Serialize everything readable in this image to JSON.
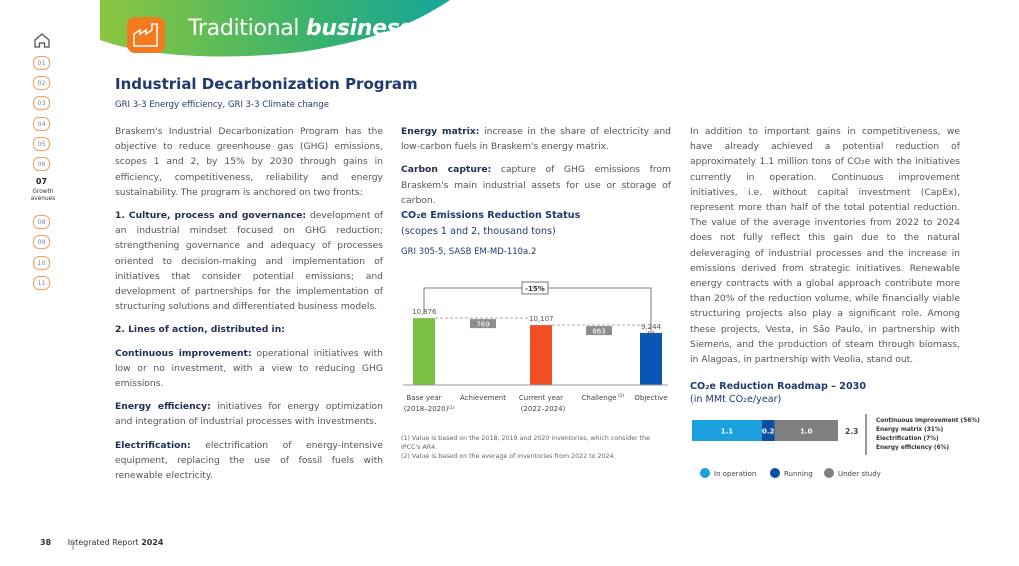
{
  "header": {
    "section": "Traditional",
    "section_emph": "business"
  },
  "nav": {
    "items": [
      "01",
      "02",
      "03",
      "04",
      "05",
      "06",
      "07",
      "08",
      "09",
      "10",
      "11"
    ],
    "active_index": 6,
    "active_label": "Growth avenues"
  },
  "title": "Industrial Decarbonization Program",
  "subtitle": "GRI 3-3 Energy efficiency, GRI 3-3 Climate change",
  "column1": [
    {
      "text": "Braskem's Industrial Decarbonization Program has the objective to reduce greenhouse gas (GHG) emissions, scopes 1 and 2, by 15% by 2030 through gains in efficiency, competitiveness, reliability and energy sustainability. The program is anchored on two fronts:"
    },
    {
      "lead": "1. Culture, process and governance:",
      "text": " development of an industrial mindset focused on GHG reduction; strengthening governance and adequacy of processes oriented to decision-making and implementation of initiatives that consider potential emissions; and development of partnerships for the implementation of structuring solutions and differentiated business models."
    },
    {
      "lead": "2. Lines of action, distributed in:"
    },
    {
      "lead": "Continuous improvement:",
      "text": " operational initiatives with low or no investment, with a view to reducing GHG emissions."
    },
    {
      "lead": "Energy efficiency:",
      "text": " initiatives for energy optimization and integration of industrial processes with investments."
    },
    {
      "lead": "Electrification:",
      "text": " electrification of energy-intensive equipment, replacing the use of fossil fuels with renewable electricity."
    }
  ],
  "column2": [
    {
      "lead": "Energy matrix:",
      "text": " increase in the share of electricity and low-carbon fuels in Braskem's energy matrix."
    },
    {
      "lead": "Carbon capture:",
      "text": " capture of GHG emissions from Braskem's main industrial assets for use or storage of carbon."
    }
  ],
  "column3": "In addition to important gains in competitiveness, we have already achieved a potential reduction of approximately 1.1 million tons of CO₂e with the initiatives currently in operation. Continuous improvement initiatives, i.e. without capital investment (CapEx), represent more than half of the total potential reduction. The value of the average inventories from 2022 to 2024 does not fully reflect this gain due to the natural deleveraging of industrial processes and the increase in emissions derived from strategic initiatives. Renewable energy contracts with a global approach contribute more than 20% of the reduction volume, while financially viable structuring projects also play a significant role. Among these projects, Vesta, in São Paulo, in partnership with Siemens, and the production of steam through biomass, in Alagoas, in partnership with Veolia, stand out.",
  "chart_data": [
    {
      "type": "waterfall",
      "title": "CO₂e Emissions Reduction Status",
      "subtitle": "(scopes 1 and 2, thousand tons)",
      "reference": "GRI 305-5, SASB EM-MD-110a.2",
      "categories": [
        "Base year",
        "Achievement",
        "Current year",
        "Challenge",
        "Objective"
      ],
      "category_notes": [
        "(2018–2020)",
        null,
        "(2022–2024)",
        null,
        null
      ],
      "category_refs": [
        "(1)",
        null,
        null,
        "(2)",
        null
      ],
      "values": [
        10876,
        769,
        10107,
        863,
        9244
      ],
      "value_labels": [
        "10,876",
        "769",
        "10,107",
        "863",
        "9,244"
      ],
      "measures": [
        "total",
        "decrease",
        "total",
        "decrease",
        "total"
      ],
      "colors": [
        "#7ac143",
        "#8c8c8c",
        "#f04e23",
        "#8c8c8c",
        "#0a56b5"
      ],
      "ylim": [
        3500,
        11000
      ],
      "annotation": "-15%",
      "footnotes": [
        "(1) Value is based on the 2018, 2019 and 2020 inventories, which consider the IPCC's AR4.",
        "(2) Value is based on the average of inventories from 2022 to 2024."
      ]
    },
    {
      "type": "stacked_hbar",
      "title": "CO₂e Reduction Roadmap – 2030",
      "subtitle": "(in MMt CO₂e/year)",
      "series": [
        {
          "name": "In operation",
          "color": "#1aa0dd",
          "values": [
            1.1
          ],
          "value_labels": [
            "1.1"
          ]
        },
        {
          "name": "Running",
          "color": "#0b4ea2",
          "values": [
            0.2
          ],
          "value_labels": [
            "0.2"
          ]
        },
        {
          "name": "Under study",
          "color": "#808080",
          "values": [
            1
          ],
          "value_labels": [
            "1.0"
          ]
        }
      ],
      "total": 2.3,
      "xlim": [
        0,
        2.3
      ],
      "breakdown": [
        "Continuous improvement (56%)",
        "Energy matrix (31%)",
        "Electrification (7%)",
        "Energy efficiency (6%)"
      ]
    }
  ],
  "footer": {
    "page": "38",
    "report": "Integrated Report",
    "year": "2024"
  }
}
